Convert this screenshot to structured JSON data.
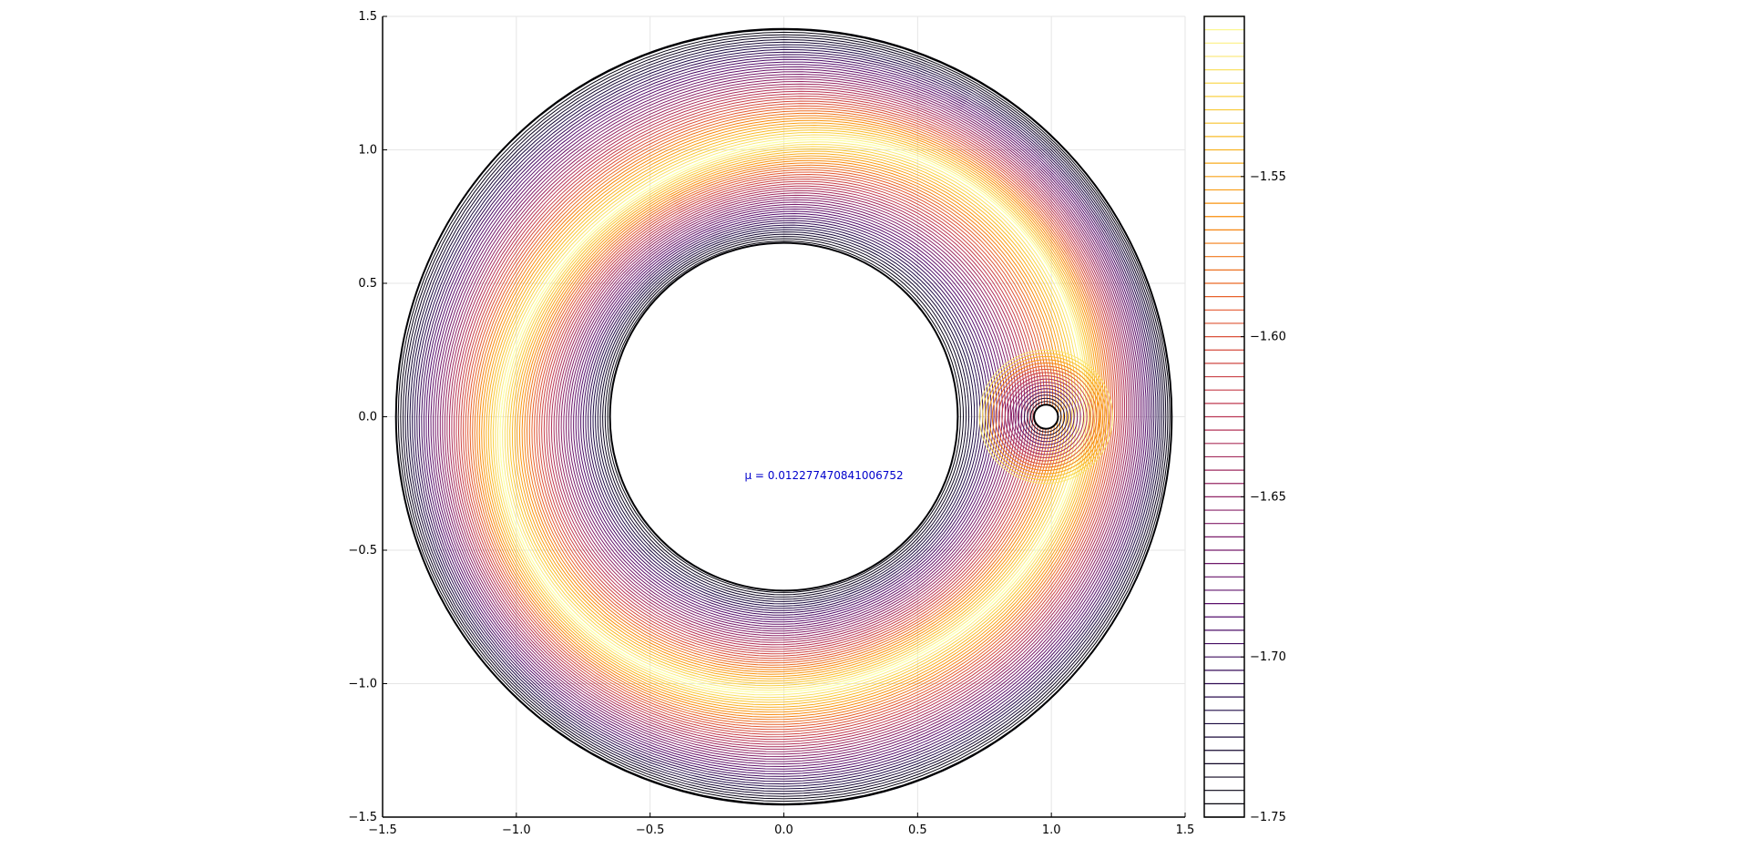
{
  "chart_data": {
    "type": "contour",
    "title": "",
    "xlabel": "",
    "ylabel": "",
    "xlim": [
      -1.5,
      1.5
    ],
    "ylim": [
      -1.5,
      1.5
    ],
    "x_ticks": [
      -1.5,
      -1.0,
      -0.5,
      0.0,
      0.5,
      1.0,
      1.5
    ],
    "x_tick_labels": [
      "−1.5",
      "−1.0",
      "−0.5",
      "0.0",
      "0.5",
      "1.0",
      "1.5"
    ],
    "y_ticks": [
      -1.5,
      -1.0,
      -0.5,
      0.0,
      0.5,
      1.0,
      1.5
    ],
    "y_tick_labels": [
      "−1.5",
      "−1.0",
      "−0.5",
      "0.0",
      "0.5",
      "1.0",
      "1.5"
    ],
    "grid": true,
    "aspect": "equal",
    "colormap": "inferno",
    "annotation": {
      "text": "μ = 0.012277470841006752",
      "x": 0.15,
      "y": -0.22,
      "color": "#0000cc"
    },
    "domain": {
      "outer_radius": 1.45,
      "inner_radius": 0.65,
      "secondary_body_center": [
        0.98,
        0.0
      ],
      "secondary_body_radius": 0.045
    },
    "colorbar": {
      "range": [
        -1.75,
        -1.5
      ],
      "ticks": [
        -1.55,
        -1.6,
        -1.65,
        -1.7,
        -1.75
      ],
      "tick_labels": [
        "−1.55",
        "−1.60",
        "−1.65",
        "−1.70",
        "−1.75"
      ],
      "levels": 60
    }
  }
}
